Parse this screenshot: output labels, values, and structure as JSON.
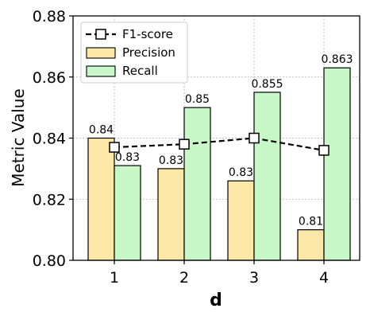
{
  "chart_data": {
    "type": "bar",
    "categories": [
      "1",
      "2",
      "3",
      "4"
    ],
    "xlabel": "d",
    "ylabel": "Metric Value",
    "ylim": [
      0.8,
      0.88
    ],
    "yticks": [
      "0.80",
      "0.82",
      "0.84",
      "0.86",
      "0.88"
    ],
    "grid": true,
    "legend_position": "upper-left",
    "series": [
      {
        "name": "Precision",
        "kind": "bar",
        "color": "#fde8a8",
        "values": [
          0.84,
          0.83,
          0.826,
          0.81
        ],
        "labels": [
          "0.84",
          "0.83",
          "0.83",
          "0.81"
        ]
      },
      {
        "name": "Recall",
        "kind": "bar",
        "color": "#c8f7c8",
        "values": [
          0.831,
          0.85,
          0.855,
          0.863
        ],
        "labels": [
          "0.83",
          "0.85",
          "0.855",
          "0.863"
        ]
      },
      {
        "name": "F1-score",
        "kind": "line",
        "color": "#000000",
        "marker": "square",
        "linestyle": "dashed",
        "values": [
          0.837,
          0.838,
          0.84,
          0.836
        ]
      }
    ]
  }
}
